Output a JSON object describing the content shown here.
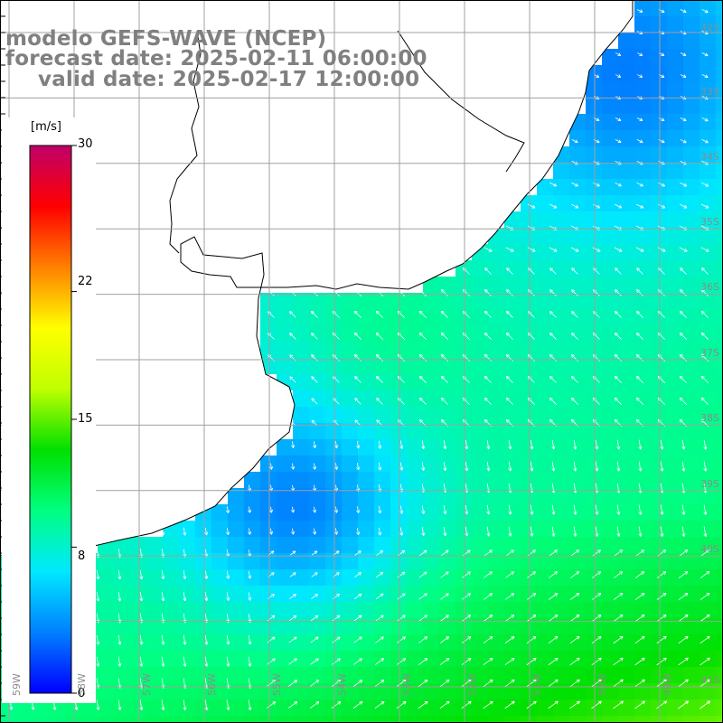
{
  "title": {
    "line1": "modelo GEFS-WAVE (NCEP)",
    "line2": "forecast date: 2025-02-11 06:00:00",
    "line3": "valid date: 2025-02-17 12:00:00"
  },
  "colorbar": {
    "unit": "[m/s]",
    "ticks": [
      "30",
      "22",
      "15",
      "8",
      "0"
    ],
    "tick_values": [
      30,
      22,
      15,
      8,
      0
    ],
    "min": 0,
    "max": 30,
    "colors": [
      "#0000ff",
      "#0080ff",
      "#00e8ff",
      "#00ff80",
      "#00e000",
      "#c0ff00",
      "#ffff00",
      "#ff8000",
      "#ff0000",
      "#c0006a"
    ]
  },
  "map": {
    "lat_labels": [
      "32S",
      "33S",
      "34S",
      "35S",
      "36S",
      "37S",
      "38S",
      "39S",
      "40S",
      "41S"
    ],
    "lon_labels": [
      "59W",
      "58W",
      "57W",
      "56W",
      "55W",
      "54W",
      "53W",
      "52W",
      "51W",
      "50W",
      "49W"
    ],
    "land_color": "#ffffff",
    "coast_color": "#000000",
    "grid_color": "#a0a0a0",
    "arrow_color": "#ffffff"
  }
}
